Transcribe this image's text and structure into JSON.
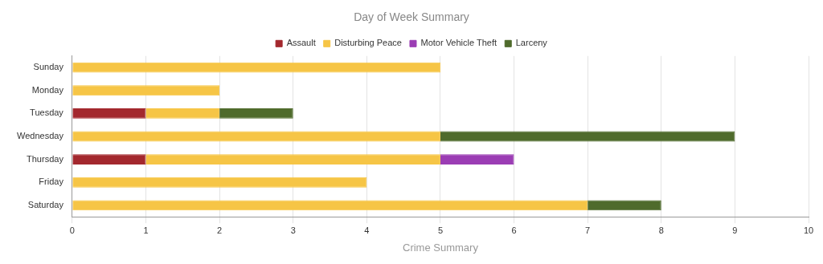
{
  "chart_data": {
    "type": "bar",
    "title": "Day of Week Summary",
    "xlabel": "Crime Summary",
    "orientation": "horizontal",
    "stacked": true,
    "categories": [
      "Sunday",
      "Monday",
      "Tuesday",
      "Wednesday",
      "Thursday",
      "Friday",
      "Saturday"
    ],
    "series": [
      {
        "name": "Assault",
        "color": "#a3282e",
        "values": [
          null,
          null,
          1,
          null,
          1,
          null,
          null
        ]
      },
      {
        "name": "Disturbing Peace",
        "color": "#f6c546",
        "values": [
          5,
          2,
          1,
          5,
          4,
          4,
          7
        ]
      },
      {
        "name": "Motor Vehicle Theft",
        "color": "#9b3db4",
        "values": [
          null,
          null,
          null,
          null,
          1,
          null,
          null
        ]
      },
      {
        "name": "Larceny",
        "color": "#4f6b2c",
        "values": [
          null,
          null,
          1,
          4,
          null,
          null,
          1
        ]
      }
    ],
    "xlim": [
      0,
      10
    ],
    "xticks": [
      0,
      1,
      2,
      3,
      4,
      5,
      6,
      7,
      8,
      9,
      10
    ],
    "grid": "x",
    "legend": "top"
  }
}
